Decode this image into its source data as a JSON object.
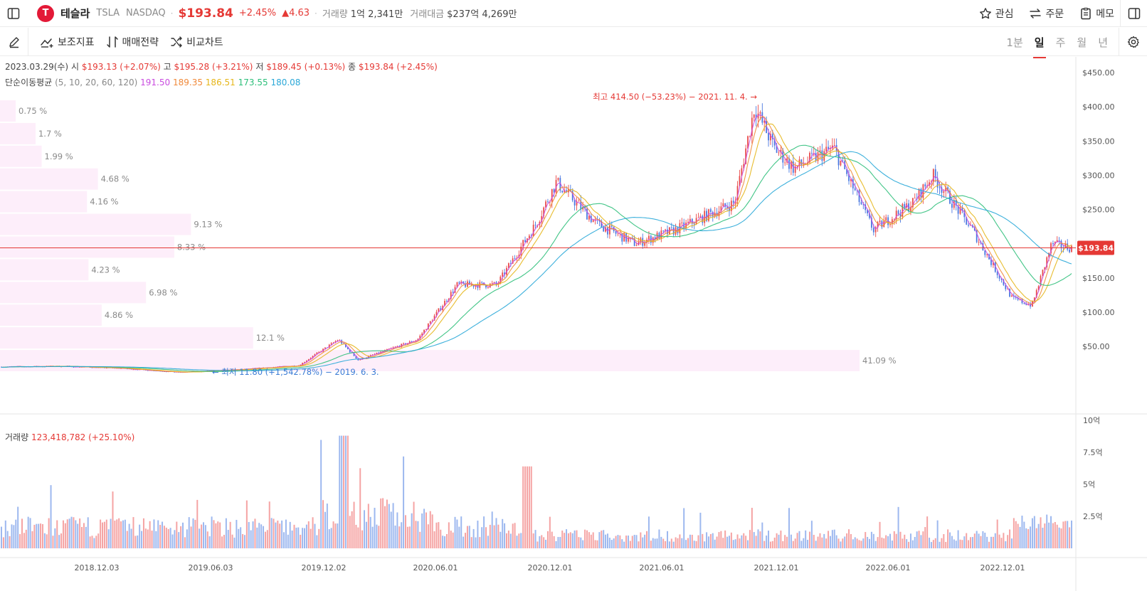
{
  "header": {
    "name": "테슬라",
    "logo_letter": "T",
    "ticker": "TSLA",
    "exchange": "NASDAQ",
    "price": "$193.84",
    "change_pct": "+2.45%",
    "change_abs": "▲4.63",
    "volume_label": "거래량",
    "volume_value": "1억 2,341만",
    "turnover_label": "거래대금",
    "turnover_value": "$237억 4,269만",
    "actions": {
      "watch": "관심",
      "order": "주문",
      "memo": "메모"
    }
  },
  "toolbar": {
    "indicators": "보조지표",
    "strategy": "매매전략",
    "compare": "비교차트",
    "periods": [
      "1분",
      "일",
      "주",
      "월",
      "년"
    ],
    "active_period": "일"
  },
  "ohlc": {
    "date": "2023.03.29(수)",
    "open_label": "시",
    "open": "$193.13 (+2.07%)",
    "high_label": "고",
    "high": "$195.28 (+3.21%)",
    "low_label": "저",
    "low": "$189.45 (+0.13%)",
    "close_label": "종",
    "close": "$193.84 (+2.45%)"
  },
  "ma_legend": {
    "label": "단순이동평균",
    "params": "(5, 10, 20, 60, 120)",
    "values": [
      {
        "value": "191.50",
        "color": "#c94ce0"
      },
      {
        "value": "189.35",
        "color": "#f0893a"
      },
      {
        "value": "186.51",
        "color": "#e6b619"
      },
      {
        "value": "173.55",
        "color": "#2dbf7a"
      },
      {
        "value": "180.08",
        "color": "#2aa8d8"
      }
    ]
  },
  "volume_legend": {
    "label": "거래량",
    "value": "123,418,782 (+25.10%)"
  },
  "chart_data": {
    "type": "candlestick",
    "y_axis_ticks": [
      "$450.00",
      "$400.00",
      "$350.00",
      "$300.00",
      "$250.00",
      "$200.00",
      "$150.00",
      "$100.00",
      "$50.00"
    ],
    "ylim": [
      0,
      460
    ],
    "x_axis_ticks": [
      "2018.12.03",
      "2019.06.03",
      "2019.12.02",
      "2020.06.01",
      "2020.12.01",
      "2021.06.01",
      "2021.12.01",
      "2022.06.01",
      "2022.12.01"
    ],
    "current_price": 193.84,
    "current_price_label": "$193.84",
    "max_annotation": "최고 414.50 (−53.23%) − 2021. 11. 4.",
    "min_annotation": "최저 11.80 (+1,542.78%) − 2019. 6. 3.",
    "price_profile": [
      {
        "pct": 0.75,
        "label": "0.75 %"
      },
      {
        "pct": 1.7,
        "label": "1.7 %"
      },
      {
        "pct": 1.99,
        "label": "1.99 %"
      },
      {
        "pct": 4.68,
        "label": "4.68 %"
      },
      {
        "pct": 4.16,
        "label": "4.16 %"
      },
      {
        "pct": 9.13,
        "label": "9.13 %"
      },
      {
        "pct": 8.33,
        "label": "8.33 %"
      },
      {
        "pct": 4.23,
        "label": "4.23 %"
      },
      {
        "pct": 6.98,
        "label": "6.98 %"
      },
      {
        "pct": 4.86,
        "label": "4.86 %"
      },
      {
        "pct": 12.1,
        "label": "12.1 %"
      },
      {
        "pct": 41.09,
        "label": "41.09 %"
      }
    ],
    "price_path": [
      [
        "2018.09",
        20
      ],
      [
        "2018.12",
        21
      ],
      [
        "2019.03",
        18
      ],
      [
        "2019.06",
        12
      ],
      [
        "2019.09",
        16
      ],
      [
        "2019.12",
        22
      ],
      [
        "2020.02",
        60
      ],
      [
        "2020.03",
        30
      ],
      [
        "2020.06",
        60
      ],
      [
        "2020.08",
        140
      ],
      [
        "2020.10",
        140
      ],
      [
        "2020.12",
        230
      ],
      [
        "2021.01",
        290
      ],
      [
        "2021.03",
        230
      ],
      [
        "2021.05",
        200
      ],
      [
        "2021.07",
        220
      ],
      [
        "2021.10",
        260
      ],
      [
        "2021.11",
        400
      ],
      [
        "2021.12",
        340
      ],
      [
        "2022.01",
        310
      ],
      [
        "2022.03",
        340
      ],
      [
        "2022.05",
        220
      ],
      [
        "2022.07",
        260
      ],
      [
        "2022.08",
        300
      ],
      [
        "2022.10",
        220
      ],
      [
        "2022.12",
        120
      ],
      [
        "2023.01",
        110
      ],
      [
        "2023.02",
        200
      ],
      [
        "2023.03",
        193.84
      ]
    ],
    "volume_axis_ticks": [
      "10억",
      "7.5억",
      "5억",
      "2.5억"
    ],
    "volume_ylim": [
      0,
      1000
    ]
  }
}
